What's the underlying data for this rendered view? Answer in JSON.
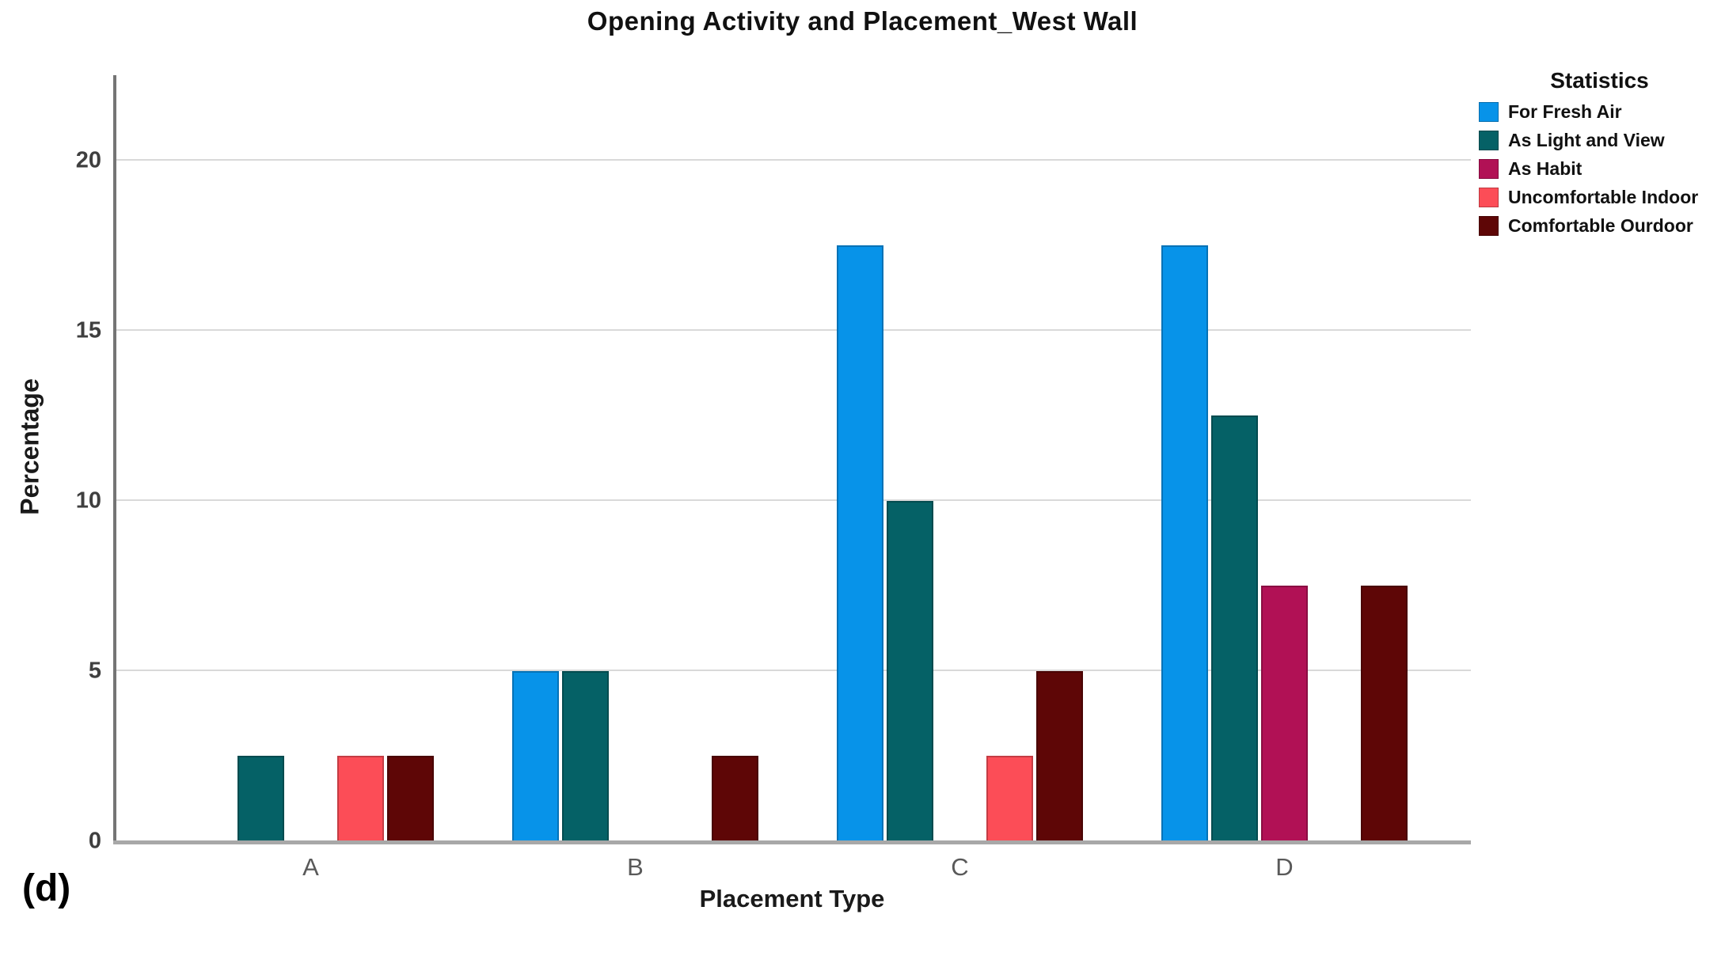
{
  "figure": {
    "panel_label": "(d)"
  },
  "chart_data": {
    "type": "bar",
    "title": "Opening Activity and Placement_West Wall",
    "xlabel": "Placement Type",
    "ylabel": "Percentage",
    "legend_title": "Statistics",
    "legend_position": "top-right",
    "grid": true,
    "ylim": [
      0,
      22.5
    ],
    "yticks": [
      0,
      5,
      10,
      15,
      20
    ],
    "categories": [
      "A",
      "B",
      "C",
      "D"
    ],
    "series": [
      {
        "name": "For Fresh Air",
        "color": "#0793E9",
        "values": [
          0,
          5,
          17.5,
          17.5
        ]
      },
      {
        "name": "As Light and View",
        "color": "#056166",
        "values": [
          2.5,
          5,
          10,
          12.5
        ]
      },
      {
        "name": "As Habit",
        "color": "#B11155",
        "values": [
          0,
          0,
          0,
          7.5
        ]
      },
      {
        "name": "Uncomfortable Indoor",
        "color": "#FC4D57",
        "values": [
          2.5,
          0,
          2.5,
          0
        ]
      },
      {
        "name": "Comfortable Ourdoor",
        "color": "#5E0606",
        "values": [
          2.5,
          2.5,
          5,
          7.5
        ]
      }
    ],
    "colors": {
      "gridline": "#d9d9d9",
      "y_axis": "#757575",
      "x_axis": "#a8a8a8",
      "tick_label": "#3f3f3f",
      "category_label": "#595959"
    }
  }
}
